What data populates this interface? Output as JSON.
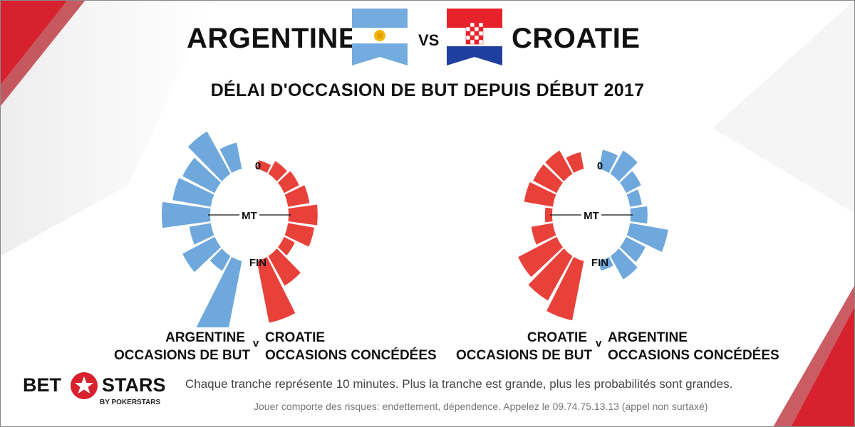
{
  "header": {
    "team_left": "ARGENTINE",
    "vs": "VS",
    "team_right": "CROATIE",
    "subtitle": "DÉLAI D'OCCASION DE BUT DEPUIS DÉBUT 2017"
  },
  "flags": {
    "left": "argentina-flag-icon",
    "right": "croatia-flag-icon"
  },
  "colors": {
    "blue": "#6fa8dc",
    "red": "#e8413a",
    "accent_red": "#d7212e"
  },
  "chart_data": [
    {
      "type": "radial-bar",
      "segment_minutes": 10,
      "categories": [
        "0-10",
        "10-20",
        "20-30",
        "30-40",
        "40-50",
        "50-60",
        "60-70",
        "70-80",
        "80-90"
      ],
      "markers": [
        "0",
        "MT",
        "FIN"
      ],
      "series": [
        {
          "name": "ARGENTINE OCCASIONS DE BUT",
          "color": "#6fa8dc",
          "side": "left",
          "values": [
            0.55,
            1.0,
            0.75,
            0.8,
            1.0,
            0.45,
            0.75,
            0.35,
            2.1
          ]
        },
        {
          "name": "CROATIE OCCASIONS CONCÉDÉES",
          "color": "#e8413a",
          "side": "right",
          "values": [
            0.18,
            0.3,
            0.35,
            0.45,
            0.6,
            0.55,
            0.25,
            0.7,
            1.3
          ]
        }
      ],
      "label_left": [
        "ARGENTINE",
        "OCCASIONS DE BUT"
      ],
      "label_right": [
        "CROATIE",
        "OCCASIONS CONCÉDÉES"
      ],
      "label_mid": "v"
    },
    {
      "type": "radial-bar",
      "segment_minutes": 10,
      "categories": [
        "0-10",
        "10-20",
        "20-30",
        "30-40",
        "40-50",
        "50-60",
        "60-70",
        "70-80",
        "80-90"
      ],
      "markers": [
        "0",
        "MT",
        "FIN"
      ],
      "series": [
        {
          "name": "CROATIE OCCASIONS DE BUT",
          "color": "#e8413a",
          "side": "left",
          "values": [
            0.35,
            0.55,
            0.55,
            0.6,
            0.15,
            0.45,
            0.9,
            1.05,
            1.25
          ]
        },
        {
          "name": "ARGENTINE OCCASIONS CONCÉDÉES",
          "color": "#6fa8dc",
          "side": "right",
          "values": [
            0.4,
            0.55,
            0.35,
            0.25,
            0.35,
            0.8,
            0.45,
            0.55,
            0.2
          ]
        }
      ],
      "label_left": [
        "CROATIE",
        "OCCASIONS DE BUT"
      ],
      "label_right": [
        "ARGENTINE",
        "OCCASIONS CONCÉDÉES"
      ],
      "label_mid": "v"
    }
  ],
  "footer": {
    "note": "Chaque tranche représente 10 minutes. Plus la tranche est grande, plus les probabilités sont grandes.",
    "disclaimer": "Jouer comporte des risques: endettement, dépendence. Appelez le 09.74.75.13.13 (appel non surtaxé)"
  },
  "logo": {
    "left": "BET",
    "right": "STARS",
    "sub": "BY POKERSTARS",
    "icon": "star-icon"
  }
}
